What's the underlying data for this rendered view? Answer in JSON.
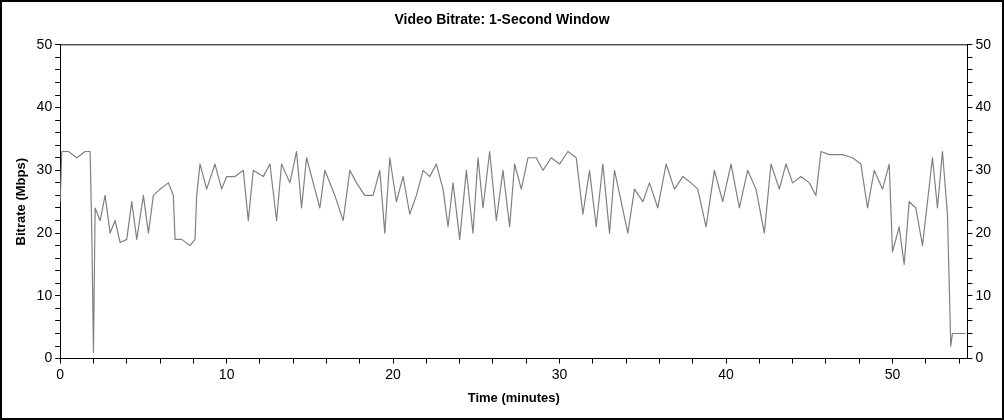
{
  "chart_data": {
    "type": "line",
    "title": "Video Bitrate: 1-Second Window",
    "xlabel": "Time (minutes)",
    "ylabel": "Bitrate (Mbps)",
    "xlim": [
      0,
      54.5
    ],
    "xticks": [
      0,
      {
        "value": 2,
        "label": null
      },
      {
        "value": 4,
        "label": null
      },
      {
        "value": 6,
        "label": null
      },
      {
        "value": 8,
        "label": null
      },
      10,
      {
        "value": 12,
        "label": null
      },
      {
        "value": 14,
        "label": null
      },
      {
        "value": 16,
        "label": null
      },
      {
        "value": 18,
        "label": null
      },
      20,
      {
        "value": 22,
        "label": null
      },
      {
        "value": 24,
        "label": null
      },
      {
        "value": 26,
        "label": null
      },
      {
        "value": 28,
        "label": null
      },
      30,
      {
        "value": 32,
        "label": null
      },
      {
        "value": 34,
        "label": null
      },
      {
        "value": 36,
        "label": null
      },
      {
        "value": 38,
        "label": null
      },
      40,
      {
        "value": 42,
        "label": null
      },
      {
        "value": 44,
        "label": null
      },
      {
        "value": 46,
        "label": null
      },
      {
        "value": 48,
        "label": null
      },
      50,
      {
        "value": 52,
        "label": null
      },
      {
        "value": 54,
        "label": null
      }
    ],
    "ylim": [
      0,
      50
    ],
    "yticks": [
      0,
      {
        "value": 2,
        "label": null
      },
      {
        "value": 4,
        "label": null
      },
      {
        "value": 6,
        "label": null
      },
      {
        "value": 8,
        "label": null
      },
      10,
      {
        "value": 12,
        "label": null
      },
      {
        "value": 14,
        "label": null
      },
      {
        "value": 16,
        "label": null
      },
      {
        "value": 18,
        "label": null
      },
      20,
      {
        "value": 22,
        "label": null
      },
      {
        "value": 24,
        "label": null
      },
      {
        "value": 26,
        "label": null
      },
      {
        "value": 28,
        "label": null
      },
      30,
      {
        "value": 32,
        "label": null
      },
      {
        "value": 34,
        "label": null
      },
      {
        "value": 36,
        "label": null
      },
      {
        "value": 38,
        "label": null
      },
      40,
      {
        "value": 42,
        "label": null
      },
      {
        "value": 44,
        "label": null
      },
      {
        "value": 46,
        "label": null
      },
      {
        "value": 48,
        "label": null
      },
      50
    ],
    "y2lim": [
      0,
      50
    ],
    "y2ticks": [
      0,
      {
        "value": 2,
        "label": null
      },
      {
        "value": 4,
        "label": null
      },
      {
        "value": 6,
        "label": null
      },
      {
        "value": 8,
        "label": null
      },
      10,
      {
        "value": 12,
        "label": null
      },
      {
        "value": 14,
        "label": null
      },
      {
        "value": 16,
        "label": null
      },
      {
        "value": 18,
        "label": null
      },
      20,
      {
        "value": 22,
        "label": null
      },
      {
        "value": 24,
        "label": null
      },
      {
        "value": 26,
        "label": null
      },
      {
        "value": 28,
        "label": null
      },
      30,
      {
        "value": 32,
        "label": null
      },
      {
        "value": 34,
        "label": null
      },
      {
        "value": 36,
        "label": null
      },
      {
        "value": 38,
        "label": null
      },
      40,
      {
        "value": 42,
        "label": null
      },
      {
        "value": 44,
        "label": null
      },
      {
        "value": 46,
        "label": null
      },
      {
        "value": 48,
        "label": null
      },
      50
    ],
    "grid": false,
    "legend": false,
    "marker": "none",
    "line_style": "solid",
    "x": [
      0,
      0.1,
      0.5,
      1.0,
      1.5,
      1.8,
      1.9,
      2.0,
      2.1,
      2.4,
      2.7,
      3.0,
      3.3,
      3.6,
      4.0,
      4.3,
      4.6,
      5.0,
      5.3,
      5.6,
      6.0,
      6.5,
      6.8,
      6.9,
      7.3,
      7.8,
      8.1,
      8.2,
      8.4,
      8.8,
      9.3,
      9.7,
      10.0,
      10.5,
      11.0,
      11.3,
      11.6,
      12.2,
      12.6,
      13.0,
      13.3,
      13.8,
      14.2,
      14.5,
      14.8,
      15.3,
      15.6,
      15.9,
      16.5,
      17.0,
      17.4,
      17.8,
      18.3,
      18.8,
      19.2,
      19.5,
      19.8,
      20.2,
      20.6,
      21.0,
      21.4,
      21.8,
      22.2,
      22.6,
      23.0,
      23.3,
      23.6,
      24.0,
      24.4,
      24.8,
      25.1,
      25.4,
      25.8,
      26.2,
      26.6,
      27.0,
      27.3,
      27.7,
      28.1,
      28.6,
      29.0,
      29.5,
      30.0,
      30.5,
      31.0,
      31.4,
      31.8,
      32.2,
      32.6,
      33.0,
      33.3,
      33.7,
      34.1,
      34.5,
      35.0,
      35.4,
      35.9,
      36.4,
      36.9,
      37.4,
      37.9,
      38.3,
      38.8,
      39.3,
      39.8,
      40.3,
      40.8,
      41.3,
      41.8,
      42.3,
      42.7,
      43.2,
      43.6,
      44.0,
      44.5,
      45.0,
      45.4,
      45.7,
      46.2,
      47.0,
      47.6,
      48.1,
      48.5,
      48.9,
      49.4,
      49.8,
      50.0,
      50.4,
      50.7,
      51.0,
      51.4,
      51.8,
      52.1,
      52.4,
      52.7,
      53.0,
      53.3,
      53.5,
      53.6,
      54.0,
      54.4
    ],
    "series": [
      {
        "color": "#808080",
        "values": [
          25,
          33,
          33,
          32,
          33,
          33,
          20,
          1,
          24,
          22,
          26,
          20,
          22,
          18.5,
          19,
          25,
          19,
          26,
          20,
          26,
          27,
          28,
          26,
          19,
          19,
          18,
          19,
          26,
          31,
          27,
          31,
          27,
          29,
          29,
          30,
          22,
          30,
          29,
          31,
          22,
          31,
          28,
          33,
          24,
          32,
          27,
          24,
          30,
          26,
          22,
          30,
          28,
          26,
          26,
          30,
          20,
          32,
          25,
          29,
          23,
          26,
          30,
          29,
          31,
          27,
          21,
          28,
          19,
          30,
          20,
          32,
          24,
          33,
          22,
          30,
          21,
          31,
          27,
          32,
          32,
          30,
          32,
          31,
          33,
          32,
          23,
          30,
          21,
          31,
          20,
          30,
          25,
          20,
          27,
          25,
          28,
          24,
          31,
          27,
          29,
          28,
          27,
          21,
          30,
          25,
          31,
          24,
          30,
          27,
          20,
          31,
          27,
          31,
          28,
          29,
          28,
          26,
          33,
          32.5,
          32.5,
          32,
          31,
          24,
          30,
          27,
          31,
          17,
          21,
          15,
          25,
          24,
          18,
          25,
          32,
          24,
          33,
          23,
          2,
          4,
          4,
          4
        ]
      }
    ]
  }
}
